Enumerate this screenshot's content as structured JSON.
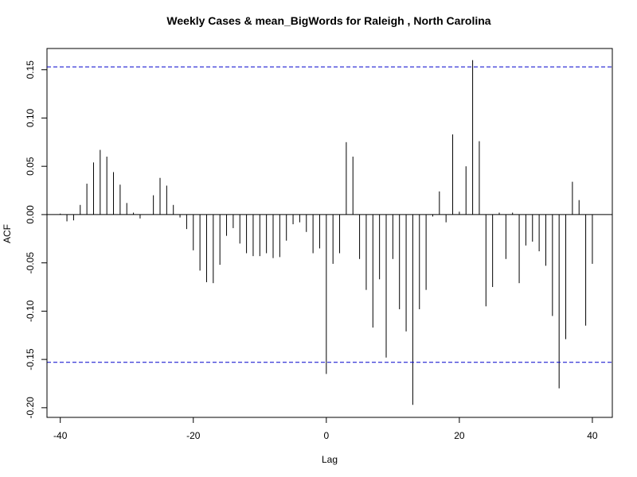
{
  "chart_data": {
    "type": "acf",
    "title": "Weekly Cases & mean_BigWords for Raleigh , North Carolina",
    "xlabel": "Lag",
    "ylabel": "ACF",
    "xlim": [
      -42,
      43
    ],
    "ylim": [
      -0.21,
      0.172
    ],
    "x_ticks": [
      -40,
      -20,
      0,
      20,
      40
    ],
    "x_tick_labels": [
      "-40",
      "-20",
      "0",
      "20",
      "40"
    ],
    "y_ticks": [
      -0.2,
      -0.15,
      -0.1,
      -0.05,
      0.0,
      0.05,
      0.1,
      0.15
    ],
    "y_tick_labels": [
      "-0.20",
      "-0.15",
      "-0.10",
      "-0.05",
      "0.00",
      "0.05",
      "0.10",
      "0.15"
    ],
    "confidence_limit": 0.153,
    "confidence_color": "#0000cc",
    "bar_color": "#000000",
    "lags": [
      -40,
      -39,
      -38,
      -37,
      -36,
      -35,
      -34,
      -33,
      -32,
      -31,
      -30,
      -29,
      -28,
      -27,
      -26,
      -25,
      -24,
      -23,
      -22,
      -21,
      -20,
      -19,
      -18,
      -17,
      -16,
      -15,
      -14,
      -13,
      -12,
      -11,
      -10,
      -9,
      -8,
      -7,
      -6,
      -5,
      -4,
      -3,
      -2,
      -1,
      0,
      1,
      2,
      3,
      4,
      5,
      6,
      7,
      8,
      9,
      10,
      11,
      12,
      13,
      14,
      15,
      16,
      17,
      18,
      19,
      20,
      21,
      22,
      23,
      24,
      25,
      26,
      27,
      28,
      29,
      30,
      31,
      32,
      33,
      34,
      35,
      36,
      37,
      38,
      39,
      40
    ],
    "values": [
      0.001,
      -0.007,
      -0.006,
      0.01,
      0.032,
      0.054,
      0.067,
      0.06,
      0.044,
      0.031,
      0.012,
      0.002,
      -0.004,
      0.0,
      0.02,
      0.038,
      0.03,
      0.01,
      -0.003,
      -0.015,
      -0.037,
      -0.058,
      -0.07,
      -0.071,
      -0.052,
      -0.022,
      -0.014,
      -0.03,
      -0.04,
      -0.043,
      -0.043,
      -0.04,
      -0.045,
      -0.044,
      -0.027,
      -0.01,
      -0.008,
      -0.018,
      -0.04,
      -0.035,
      -0.165,
      -0.051,
      -0.04,
      0.075,
      0.06,
      -0.046,
      -0.078,
      -0.117,
      -0.067,
      -0.148,
      -0.046,
      -0.098,
      -0.121,
      -0.197,
      -0.098,
      -0.078,
      -0.002,
      0.024,
      -0.008,
      0.083,
      0.003,
      0.05,
      0.16,
      0.076,
      -0.095,
      -0.075,
      0.002,
      -0.046,
      0.002,
      -0.071,
      -0.032,
      -0.028,
      -0.038,
      -0.053,
      -0.105,
      -0.18,
      -0.129,
      0.034,
      0.015,
      -0.115,
      -0.051
    ]
  }
}
